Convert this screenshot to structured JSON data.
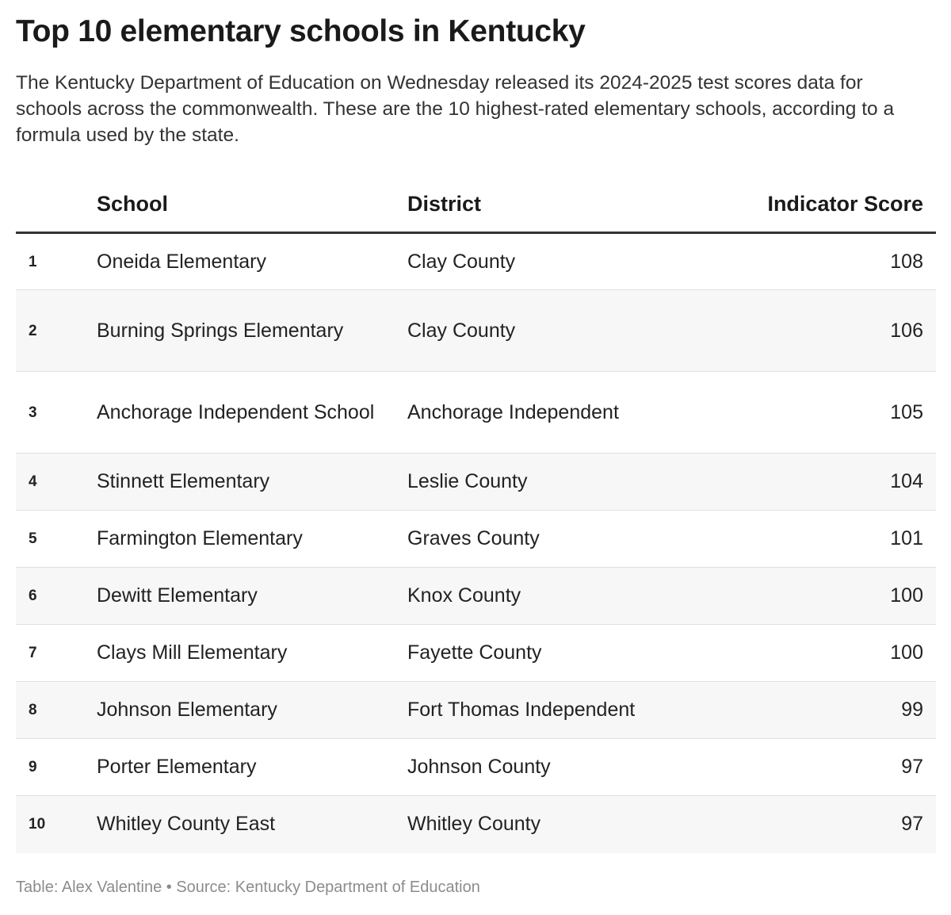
{
  "title": "Top 10 elementary schools in Kentucky",
  "subtitle": "The Kentucky Department of Education on Wednesday released its 2024-2025 test scores data for schools across the commonwealth. These are the 10 highest-rated elementary schools, according to a formula used by the state.",
  "columns": {
    "rank": "",
    "school": "School",
    "district": "District",
    "score": "Indicator Score"
  },
  "footer": "Table: Alex Valentine • Source: Kentucky Department of Education",
  "chart_data": {
    "type": "table",
    "title": "Top 10 elementary schools in Kentucky",
    "columns": [
      "",
      "School",
      "District",
      "Indicator Score"
    ],
    "rows": [
      {
        "rank": "1",
        "school": "Oneida Elementary",
        "district": "Clay County",
        "score": 108
      },
      {
        "rank": "2",
        "school": "Burning Springs Elementary",
        "district": "Clay County",
        "score": 106
      },
      {
        "rank": "3",
        "school": "Anchorage Independent School",
        "district": "Anchorage Independent",
        "score": 105
      },
      {
        "rank": "4",
        "school": "Stinnett Elementary",
        "district": "Leslie County",
        "score": 104
      },
      {
        "rank": "5",
        "school": "Farmington Elementary",
        "district": "Graves County",
        "score": 101
      },
      {
        "rank": "6",
        "school": "Dewitt Elementary",
        "district": "Knox County",
        "score": 100
      },
      {
        "rank": "7",
        "school": "Clays Mill Elementary",
        "district": "Fayette County",
        "score": 100
      },
      {
        "rank": "8",
        "school": "Johnson Elementary",
        "district": "Fort Thomas Independent",
        "score": 99
      },
      {
        "rank": "9",
        "school": "Porter Elementary",
        "district": "Johnson County",
        "score": 97
      },
      {
        "rank": "10",
        "school": "Whitley County East",
        "district": "Whitley County",
        "score": 97
      }
    ]
  }
}
